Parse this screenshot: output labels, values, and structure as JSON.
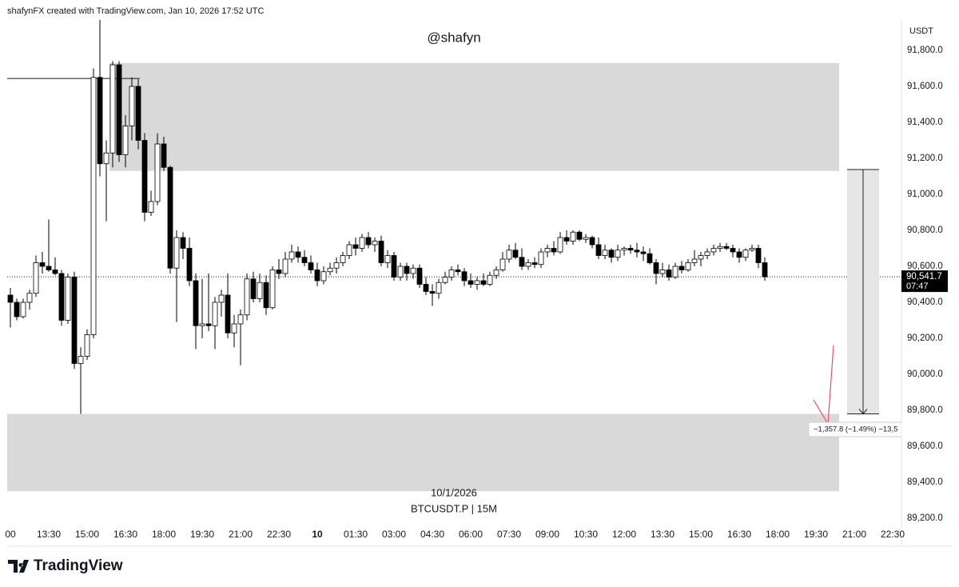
{
  "header": "shafynFX created with TradingView.com, Jan 10, 2026 17:52 UTC",
  "brand": "TradingView",
  "chart_data": {
    "type": "candlestick",
    "title": "@shafyn",
    "currency": "USDT",
    "date_label": "10/1/2026",
    "symbol": "BTCUSDT.P | 15M",
    "up_color": "#ffffff",
    "down_color": "#000000",
    "zone_color": "#d9d9d9",
    "ylim": [
      89120,
      91970
    ],
    "yticks": [
      {
        "value": 89200,
        "label": "89,200.0"
      },
      {
        "value": 89400,
        "label": "89,400.0"
      },
      {
        "value": 89600,
        "label": "89,600.0"
      },
      {
        "value": 89800,
        "label": "89,800.0"
      },
      {
        "value": 90000,
        "label": "90,000.0"
      },
      {
        "value": 90200,
        "label": "90,200.0"
      },
      {
        "value": 90400,
        "label": "90,400.0"
      },
      {
        "value": 90600,
        "label": "90,600.0"
      },
      {
        "value": 90800,
        "label": "90,800.0"
      },
      {
        "value": 91000,
        "label": "91,000.0"
      },
      {
        "value": 91200,
        "label": "91,200.0"
      },
      {
        "value": 91400,
        "label": "91,400.0"
      },
      {
        "value": 91600,
        "label": "91,600.0"
      },
      {
        "value": 91800,
        "label": "91,800.0"
      }
    ],
    "xticks": [
      "00",
      "13:30",
      "15:00",
      "16:30",
      "18:00",
      "19:30",
      "21:00",
      "22:30",
      "10",
      "01:30",
      "03:00",
      "04:30",
      "06:00",
      "07:30",
      "09:00",
      "10:30",
      "12:00",
      "13:30",
      "15:00",
      "16:30",
      "18:00",
      "19:30",
      "21:00",
      "22:30"
    ],
    "zones": [
      {
        "top": 91730,
        "bottom": 91130
      },
      {
        "top": 89780,
        "bottom": 89350
      }
    ],
    "hline": 91644,
    "last_price": 90541.7,
    "last_price_label": "90,541.7",
    "countdown": "07:47",
    "measure": {
      "from": 91137.8,
      "to": 89780,
      "label": "−1,357.8 (−1.49%) −13,5"
    },
    "candles": [
      [
        90440,
        90480,
        90260,
        90400
      ],
      [
        90400,
        90420,
        90300,
        90320
      ],
      [
        90320,
        90420,
        90310,
        90400
      ],
      [
        90400,
        90470,
        90360,
        90450
      ],
      [
        90450,
        90660,
        90430,
        90620
      ],
      [
        90620,
        90680,
        90560,
        90600
      ],
      [
        90600,
        90860,
        90570,
        90580
      ],
      [
        90580,
        90650,
        90550,
        90560
      ],
      [
        90560,
        90580,
        90270,
        90300
      ],
      [
        90300,
        90560,
        90280,
        90540
      ],
      [
        90540,
        90570,
        90030,
        90060
      ],
      [
        90060,
        90150,
        89780,
        90100
      ],
      [
        90100,
        90250,
        90080,
        90220
      ],
      [
        90220,
        91700,
        90200,
        91650
      ],
      [
        91650,
        91970,
        91100,
        91170
      ],
      [
        91170,
        91300,
        90850,
        91230
      ],
      [
        91230,
        91740,
        91150,
        91720
      ],
      [
        91720,
        91740,
        91180,
        91220
      ],
      [
        91220,
        91440,
        91150,
        91380
      ],
      [
        91380,
        91650,
        91300,
        91600
      ],
      [
        91600,
        91640,
        91250,
        91300
      ],
      [
        91300,
        91340,
        90850,
        90900
      ],
      [
        90900,
        91020,
        90880,
        90960
      ],
      [
        90960,
        91340,
        90940,
        91280
      ],
      [
        91280,
        91320,
        91130,
        91150
      ],
      [
        91150,
        91160,
        90560,
        90590
      ],
      [
        90590,
        90800,
        90290,
        90760
      ],
      [
        90760,
        90790,
        90640,
        90700
      ],
      [
        90700,
        90760,
        90490,
        90520
      ],
      [
        90520,
        90560,
        90140,
        90270
      ],
      [
        90270,
        90530,
        90200,
        90280
      ],
      [
        90280,
        90560,
        90240,
        90270
      ],
      [
        90270,
        90430,
        90140,
        90400
      ],
      [
        90400,
        90470,
        90320,
        90440
      ],
      [
        90440,
        90560,
        90200,
        90230
      ],
      [
        90230,
        90330,
        90150,
        90280
      ],
      [
        90280,
        90360,
        90050,
        90330
      ],
      [
        90330,
        90560,
        90300,
        90530
      ],
      [
        90530,
        90570,
        90400,
        90420
      ],
      [
        90420,
        90560,
        90400,
        90510
      ],
      [
        90510,
        90550,
        90330,
        90370
      ],
      [
        90370,
        90600,
        90360,
        90580
      ],
      [
        90580,
        90640,
        90530,
        90560
      ],
      [
        90560,
        90680,
        90540,
        90640
      ],
      [
        90640,
        90720,
        90620,
        90680
      ],
      [
        90680,
        90710,
        90620,
        90650
      ],
      [
        90650,
        90690,
        90600,
        90620
      ],
      [
        90620,
        90660,
        90560,
        90580
      ],
      [
        90580,
        90620,
        90490,
        90520
      ],
      [
        90520,
        90600,
        90500,
        90570
      ],
      [
        90570,
        90620,
        90550,
        90590
      ],
      [
        90590,
        90650,
        90560,
        90620
      ],
      [
        90620,
        90680,
        90600,
        90660
      ],
      [
        90660,
        90740,
        90640,
        90720
      ],
      [
        90720,
        90760,
        90660,
        90700
      ],
      [
        90700,
        90780,
        90680,
        90760
      ],
      [
        90760,
        90790,
        90700,
        90720
      ],
      [
        90720,
        90760,
        90680,
        90740
      ],
      [
        90740,
        90770,
        90600,
        90620
      ],
      [
        90620,
        90690,
        90590,
        90660
      ],
      [
        90660,
        90680,
        90520,
        90540
      ],
      [
        90540,
        90620,
        90520,
        90600
      ],
      [
        90600,
        90620,
        90520,
        90560
      ],
      [
        90560,
        90610,
        90530,
        90590
      ],
      [
        90590,
        90610,
        90480,
        90500
      ],
      [
        90500,
        90540,
        90440,
        90460
      ],
      [
        90460,
        90500,
        90380,
        90450
      ],
      [
        90450,
        90530,
        90420,
        90510
      ],
      [
        90510,
        90570,
        90500,
        90540
      ],
      [
        90540,
        90600,
        90520,
        90580
      ],
      [
        90580,
        90610,
        90550,
        90570
      ],
      [
        90570,
        90590,
        90490,
        90520
      ],
      [
        90520,
        90560,
        90480,
        90500
      ],
      [
        90500,
        90540,
        90470,
        90520
      ],
      [
        90520,
        90560,
        90490,
        90500
      ],
      [
        90500,
        90570,
        90490,
        90550
      ],
      [
        90550,
        90600,
        90530,
        90580
      ],
      [
        90580,
        90680,
        90570,
        90640
      ],
      [
        90640,
        90720,
        90620,
        90690
      ],
      [
        90690,
        90730,
        90640,
        90650
      ],
      [
        90650,
        90700,
        90580,
        90600
      ],
      [
        90600,
        90640,
        90580,
        90620
      ],
      [
        90620,
        90650,
        90590,
        90610
      ],
      [
        90610,
        90700,
        90590,
        90680
      ],
      [
        90680,
        90720,
        90650,
        90700
      ],
      [
        90700,
        90740,
        90660,
        90680
      ],
      [
        90680,
        90790,
        90670,
        90760
      ],
      [
        90760,
        90800,
        90720,
        90740
      ],
      [
        90740,
        90800,
        90720,
        90790
      ],
      [
        90790,
        90800,
        90740,
        90750
      ],
      [
        90750,
        90780,
        90730,
        90760
      ],
      [
        90760,
        90770,
        90700,
        90720
      ],
      [
        90720,
        90760,
        90640,
        90660
      ],
      [
        90660,
        90720,
        90640,
        90690
      ],
      [
        90690,
        90700,
        90620,
        90650
      ],
      [
        90650,
        90720,
        90630,
        90690
      ],
      [
        90690,
        90710,
        90660,
        90700
      ],
      [
        90700,
        90720,
        90670,
        90690
      ],
      [
        90690,
        90730,
        90650,
        90680
      ],
      [
        90680,
        90710,
        90630,
        90670
      ],
      [
        90670,
        90700,
        90610,
        90620
      ],
      [
        90620,
        90640,
        90500,
        90560
      ],
      [
        90560,
        90620,
        90540,
        90580
      ],
      [
        90580,
        90610,
        90520,
        90540
      ],
      [
        90540,
        90620,
        90530,
        90600
      ],
      [
        90600,
        90630,
        90560,
        90580
      ],
      [
        90580,
        90640,
        90570,
        90620
      ],
      [
        90620,
        90690,
        90600,
        90640
      ],
      [
        90640,
        90680,
        90600,
        90660
      ],
      [
        90660,
        90700,
        90640,
        90680
      ],
      [
        90680,
        90720,
        90660,
        90700
      ],
      [
        90700,
        90730,
        90680,
        90710
      ],
      [
        90710,
        90730,
        90690,
        90700
      ],
      [
        90700,
        90720,
        90650,
        90680
      ],
      [
        90680,
        90700,
        90620,
        90650
      ],
      [
        90650,
        90700,
        90630,
        90690
      ],
      [
        90690,
        90720,
        90680,
        90700
      ],
      [
        90700,
        90720,
        90590,
        90620
      ],
      [
        90620,
        90650,
        90520,
        90541.7
      ]
    ]
  }
}
